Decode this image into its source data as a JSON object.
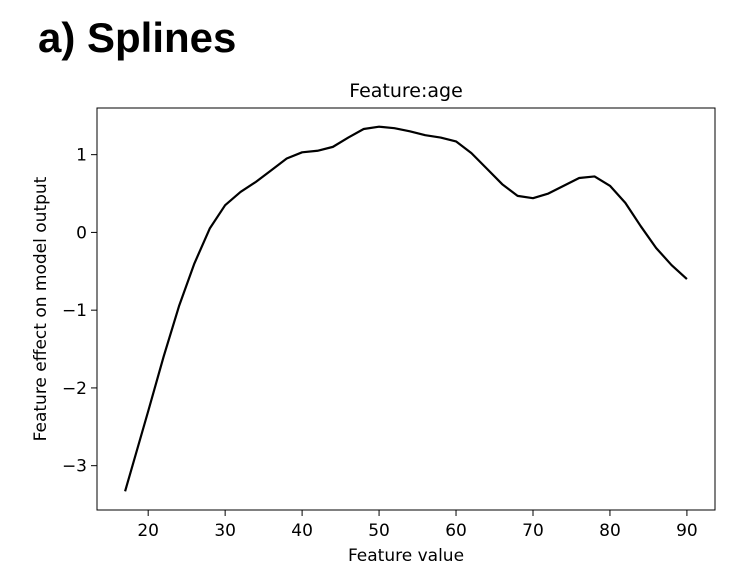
{
  "heading": "a) Splines",
  "chart_data": {
    "type": "line",
    "title": "Feature:age",
    "x_label": "Feature value",
    "y_label": "Feature effect on model output",
    "x": [
      17,
      20,
      22,
      24,
      26,
      28,
      30,
      32,
      34,
      36,
      38,
      40,
      42,
      44,
      46,
      48,
      50,
      52,
      54,
      56,
      58,
      60,
      62,
      64,
      66,
      68,
      70,
      72,
      74,
      76,
      78,
      80,
      82,
      84,
      86,
      88,
      90
    ],
    "series": [
      {
        "name": "age",
        "color": "#000000",
        "values": [
          -3.33,
          -2.3,
          -1.6,
          -0.95,
          -0.4,
          0.05,
          0.35,
          0.52,
          0.65,
          0.8,
          0.95,
          1.03,
          1.05,
          1.1,
          1.22,
          1.33,
          1.36,
          1.34,
          1.3,
          1.25,
          1.22,
          1.17,
          1.02,
          0.82,
          0.62,
          0.47,
          0.44,
          0.5,
          0.6,
          0.7,
          0.72,
          0.6,
          0.38,
          0.08,
          -0.2,
          -0.42,
          -0.6
        ]
      }
    ],
    "xlim": [
      13.35,
      93.65
    ],
    "ylim": [
      -3.57,
      1.6
    ],
    "xticks": [
      20,
      30,
      40,
      50,
      60,
      70,
      80,
      90
    ],
    "yticks": [
      {
        "value": -3,
        "label": "−3"
      },
      {
        "value": -2,
        "label": "−2"
      },
      {
        "value": -1,
        "label": "−1"
      },
      0,
      1
    ],
    "grid": false
  }
}
